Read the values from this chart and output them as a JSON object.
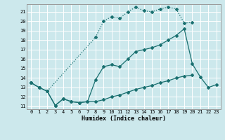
{
  "background_color": "#cce8ec",
  "grid_color": "#ffffff",
  "line_color": "#1a7070",
  "xlabel": "Humidex (Indice chaleur)",
  "ylim": [
    10.7,
    21.8
  ],
  "xlim": [
    -0.5,
    23.5
  ],
  "yticks": [
    11,
    12,
    13,
    14,
    15,
    16,
    17,
    18,
    19,
    20,
    21
  ],
  "xticks": [
    0,
    1,
    2,
    3,
    4,
    5,
    6,
    7,
    8,
    9,
    10,
    11,
    12,
    13,
    14,
    15,
    16,
    17,
    18,
    19,
    20,
    21,
    22,
    23
  ],
  "line1_x": [
    0,
    1,
    2,
    3,
    4,
    5,
    6,
    7,
    8,
    9,
    10,
    11,
    12,
    13,
    14,
    15,
    16,
    17,
    18,
    19,
    20,
    21,
    22,
    23
  ],
  "line1_y": [
    13.5,
    13.0,
    12.6,
    11.1,
    11.8,
    11.5,
    11.4,
    11.5,
    13.8,
    15.2,
    15.4,
    15.2,
    16.0,
    16.8,
    17.0,
    17.2,
    17.5,
    18.0,
    18.5,
    19.2,
    15.5,
    14.1,
    13.0,
    13.3
  ],
  "line2_x": [
    0,
    1,
    2,
    8,
    9,
    10,
    11,
    12,
    13,
    14,
    15,
    16,
    17,
    18,
    19,
    20
  ],
  "line2_y": [
    13.5,
    13.0,
    12.6,
    18.3,
    20.0,
    20.5,
    20.3,
    21.0,
    21.5,
    21.1,
    21.0,
    21.3,
    21.5,
    21.3,
    19.8,
    19.9
  ],
  "line3_x": [
    0,
    1,
    2,
    3,
    4,
    5,
    6,
    7,
    8,
    9,
    10,
    11,
    12,
    13,
    14,
    15,
    16,
    17,
    18,
    19,
    20,
    21,
    22,
    23
  ],
  "line3_y": [
    13.5,
    13.0,
    12.6,
    11.1,
    11.8,
    11.5,
    11.4,
    11.5,
    11.5,
    11.7,
    12.0,
    12.2,
    12.5,
    12.8,
    13.0,
    13.2,
    13.5,
    13.7,
    14.0,
    14.2,
    14.3,
    null,
    null,
    null
  ]
}
